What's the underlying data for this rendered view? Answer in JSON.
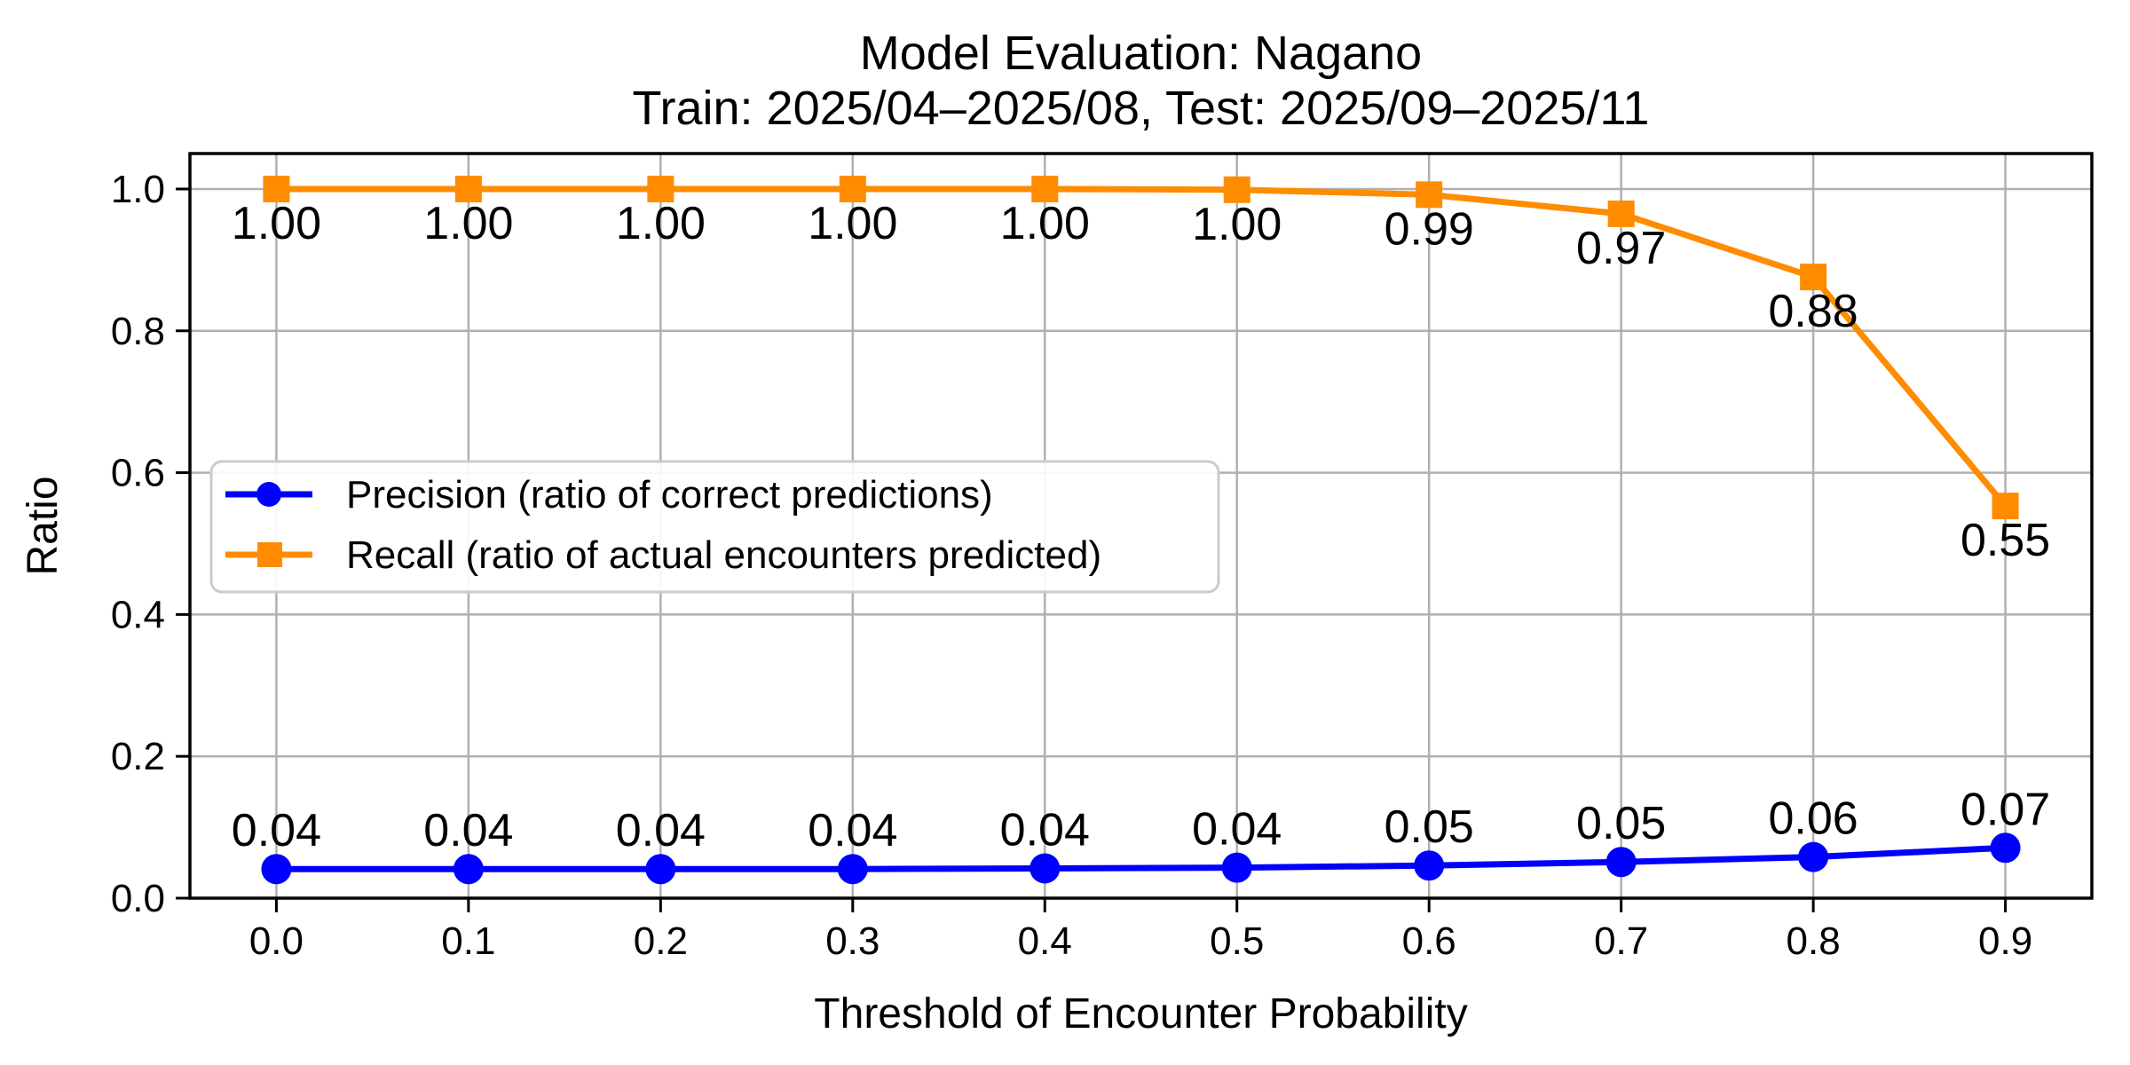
{
  "chart_data": {
    "type": "line",
    "title": "Model Evaluation: Nagano",
    "subtitle": "Train: 2025/04–2025/08, Test: 2025/09–2025/11",
    "xlabel": "Threshold of Encounter Probability",
    "ylabel": "Ratio",
    "x": [
      0.0,
      0.1,
      0.2,
      0.3,
      0.4,
      0.5,
      0.6,
      0.7,
      0.8,
      0.9
    ],
    "axes": {
      "xlim": [
        -0.045,
        0.945
      ],
      "ylim": [
        0.0,
        1.05
      ],
      "grid": true,
      "grid_color": "#b0b0b0",
      "spine_color": "#000000",
      "xticks": {
        "values": [
          0.0,
          0.1,
          0.2,
          0.3,
          0.4,
          0.5,
          0.6,
          0.7,
          0.8,
          0.9
        ],
        "labels": [
          "0.0",
          "0.1",
          "0.2",
          "0.3",
          "0.4",
          "0.5",
          "0.6",
          "0.7",
          "0.8",
          "0.9"
        ]
      },
      "yticks": {
        "values": [
          0.0,
          0.2,
          0.4,
          0.6,
          0.8,
          1.0
        ],
        "labels": [
          "0.0",
          "0.2",
          "0.4",
          "0.6",
          "0.8",
          "1.0"
        ]
      }
    },
    "series": [
      {
        "id": "precision",
        "name": "Precision (ratio of correct predictions)",
        "color": "#0000FF",
        "marker": "circle",
        "label_side": "above",
        "values": [
          0.041,
          0.041,
          0.041,
          0.041,
          0.042,
          0.043,
          0.046,
          0.051,
          0.058,
          0.071
        ],
        "point_labels": [
          "0.04",
          "0.04",
          "0.04",
          "0.04",
          "0.04",
          "0.04",
          "0.05",
          "0.05",
          "0.06",
          "0.07"
        ]
      },
      {
        "id": "recall",
        "name": "Recall (ratio of actual encounters predicted)",
        "color": "#FF8C00",
        "marker": "square",
        "label_side": "below",
        "values": [
          1.0,
          1.0,
          1.0,
          1.0,
          1.0,
          0.999,
          0.992,
          0.965,
          0.876,
          0.553
        ],
        "point_labels": [
          "1.00",
          "1.00",
          "1.00",
          "1.00",
          "1.00",
          "1.00",
          "0.99",
          "0.97",
          "0.88",
          "0.55"
        ]
      }
    ],
    "legend": {
      "position": "center-left",
      "frame_color": "#cccccc",
      "entries": [
        "Precision (ratio of correct predictions)",
        "Recall (ratio of actual encounters predicted)"
      ]
    }
  }
}
